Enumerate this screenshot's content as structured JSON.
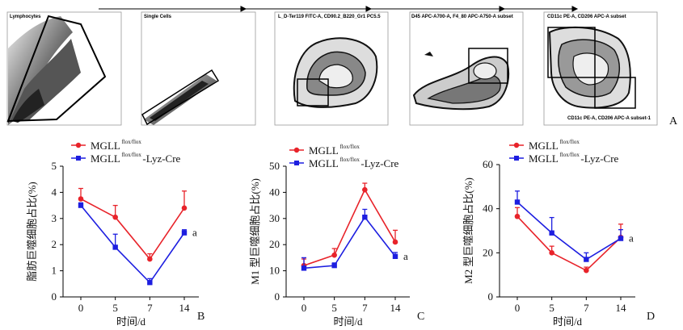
{
  "figure": {
    "panel_labels": [
      "A",
      "B",
      "C",
      "D"
    ],
    "flow_plots": [
      {
        "title": "Lymphocytes",
        "footer": ""
      },
      {
        "title": "Single Cells",
        "footer": ""
      },
      {
        "title": "L_D-Ter119 FITC-A, CD90.2_B220_Gr1 PC5.5",
        "footer": ""
      },
      {
        "title": "D45 APC-A700-A, F4_80 APC-A750-A subset",
        "footer": ""
      },
      {
        "title": "CD11c PE-A, CD206 APC-A subset",
        "footer": "CD11c PE-A, CD206 APC-A subset-1"
      }
    ]
  },
  "legend": {
    "series1_base": "MGLL",
    "series1_sup": "flox/flox",
    "series2_base": "MGLL",
    "series2_sup": "flox/flox",
    "series2_suffix": "-Lyz-Cre"
  },
  "colors": {
    "red": "#e8232a",
    "blue": "#1d1ee0"
  },
  "chart_data": [
    {
      "type": "line",
      "panel": "B",
      "xlabel": "时间/d",
      "ylabel": "脂肪巨噬细胞占比(%)",
      "categories": [
        "0",
        "5",
        "7",
        "14"
      ],
      "ylim": [
        0,
        5
      ],
      "yticks": [
        "0",
        "1",
        "2",
        "3",
        "4",
        "5"
      ],
      "series": [
        {
          "name": "MGLL flox/flox",
          "color": "#e8232a",
          "values": [
            3.75,
            3.05,
            1.45,
            3.4
          ],
          "errors": [
            0.4,
            0.45,
            0.2,
            0.65
          ]
        },
        {
          "name": "MGLL flox/flox-Lyz-Cre",
          "color": "#1d1ee0",
          "values": [
            3.5,
            1.9,
            0.55,
            2.45
          ],
          "errors": [
            0.1,
            0.5,
            0.15,
            0.12
          ]
        }
      ],
      "annotation": "a"
    },
    {
      "type": "line",
      "panel": "C",
      "xlabel": "时间/d",
      "ylabel": "M1 型巨噬细胞占比(%)",
      "categories": [
        "0",
        "5",
        "7",
        "14"
      ],
      "ylim": [
        0,
        50
      ],
      "yticks": [
        "0",
        "10",
        "20",
        "30",
        "40",
        "50"
      ],
      "series": [
        {
          "name": "MGLL flox/flox",
          "color": "#e8232a",
          "values": [
            12,
            16,
            41,
            21
          ],
          "errors": [
            2.5,
            2.5,
            2.5,
            4.5
          ]
        },
        {
          "name": "MGLL flox/flox-Lyz-Cre",
          "color": "#1d1ee0",
          "values": [
            11,
            12,
            30.5,
            15.5
          ],
          "errors": [
            4,
            1,
            3,
            1.5
          ]
        }
      ],
      "annotation": "a"
    },
    {
      "type": "line",
      "panel": "D",
      "xlabel": "时间/d",
      "ylabel": "M2 型巨噬细胞占比(%)",
      "categories": [
        "0",
        "5",
        "7",
        "14"
      ],
      "ylim": [
        0,
        60
      ],
      "yticks": [
        "0",
        "20",
        "40",
        "60"
      ],
      "series": [
        {
          "name": "MGLL flox/flox",
          "color": "#e8232a",
          "values": [
            36.5,
            20,
            12,
            27
          ],
          "errors": [
            4,
            3,
            1.5,
            6
          ]
        },
        {
          "name": "MGLL flox/flox-Lyz-Cre",
          "color": "#1d1ee0",
          "values": [
            43,
            29,
            17,
            26.5
          ],
          "errors": [
            5,
            7,
            3,
            4
          ]
        }
      ],
      "annotation": "a"
    }
  ]
}
